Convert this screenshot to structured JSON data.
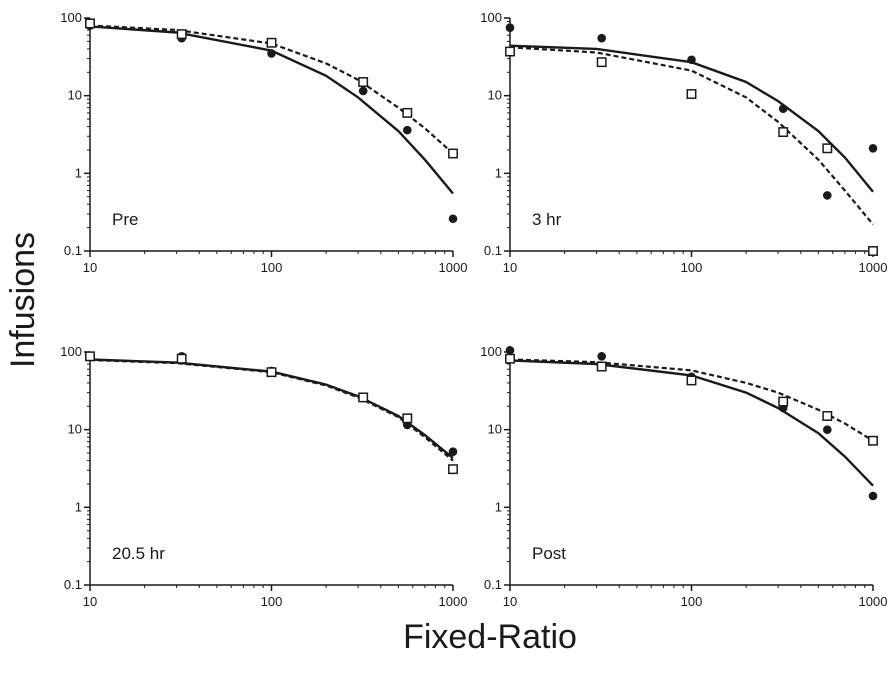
{
  "chart_data": {
    "type": "scatter",
    "xlabel": "Fixed-Ratio",
    "ylabel": "Infusions",
    "xscale": "log",
    "yscale": "log",
    "xlim": [
      10,
      1000
    ],
    "ylim": [
      0.1,
      100
    ],
    "xticks": [
      10,
      100,
      1000
    ],
    "xtick_labels": [
      "10",
      "100",
      "1000"
    ],
    "yticks": [
      0.1,
      1,
      10,
      100
    ],
    "ytick_labels": [
      "0.1",
      "1",
      "10",
      "100"
    ],
    "grid": false,
    "legend": "none",
    "marker_styles": {
      "filled": "filled circle",
      "open": "open square"
    },
    "line_styles": {
      "filled": "solid",
      "open": "dashed"
    },
    "colors": {
      "ink": "#1a1a1a",
      "background": "#ffffff"
    },
    "panels": [
      {
        "label": "Pre",
        "series": [
          {
            "marker": "filled",
            "x": [
              10,
              32,
              100,
              320,
              560,
              1000
            ],
            "y": [
              80,
              55,
              35,
              11.5,
              3.6,
              0.26
            ],
            "fit_x": [
              10,
              30,
              100,
              200,
              300,
              500,
              700,
              1000
            ],
            "fit_y": [
              78,
              65,
              38,
              18,
              9.5,
              3.5,
              1.5,
              0.55
            ]
          },
          {
            "marker": "open",
            "x": [
              10,
              32,
              100,
              320,
              560,
              1000
            ],
            "y": [
              85,
              62,
              48,
              15,
              6,
              1.8
            ],
            "fit_x": [
              10,
              30,
              100,
              200,
              300,
              500,
              700,
              1000
            ],
            "fit_y": [
              80,
              70,
              47,
              26,
              16,
              7,
              3.8,
              1.8
            ]
          }
        ]
      },
      {
        "label": "3 hr",
        "series": [
          {
            "marker": "filled",
            "x": [
              10,
              32,
              100,
              320,
              560,
              1000
            ],
            "y": [
              75,
              55,
              29,
              6.8,
              0.52,
              2.1
            ],
            "fit_x": [
              10,
              30,
              100,
              200,
              300,
              500,
              700,
              1000
            ],
            "fit_y": [
              44,
              40,
              27,
              15,
              8.5,
              3.5,
              1.6,
              0.58
            ]
          },
          {
            "marker": "open",
            "x": [
              10,
              32,
              100,
              320,
              560,
              1000
            ],
            "y": [
              37,
              27,
              10.5,
              3.4,
              2.1,
              0.1
            ],
            "fit_x": [
              10,
              30,
              100,
              200,
              300,
              500,
              700,
              1000
            ],
            "fit_y": [
              42,
              36,
              21,
              9.5,
              4.6,
              1.5,
              0.6,
              0.22
            ]
          }
        ]
      },
      {
        "label": "20.5 hr",
        "series": [
          {
            "marker": "filled",
            "x": [
              10,
              32,
              100,
              320,
              560,
              1000
            ],
            "y": [
              90,
              88,
              57,
              26,
              11.5,
              5.2
            ],
            "fit_x": [
              10,
              30,
              100,
              200,
              300,
              500,
              700,
              1000
            ],
            "fit_y": [
              80,
              73,
              56,
              38,
              27,
              15,
              8.5,
              4.3
            ]
          },
          {
            "marker": "open",
            "x": [
              10,
              32,
              100,
              320,
              560,
              1000
            ],
            "y": [
              88,
              82,
              55,
              26,
              14,
              3.1
            ],
            "fit_x": [
              10,
              30,
              100,
              200,
              300,
              500,
              700,
              1000
            ],
            "fit_y": [
              79,
              72,
              55,
              37,
              26,
              14.5,
              8,
              4
            ]
          }
        ]
      },
      {
        "label": "Post",
        "series": [
          {
            "marker": "filled",
            "x": [
              10,
              32,
              100,
              320,
              560,
              1000
            ],
            "y": [
              105,
              88,
              48,
              19,
              10,
              1.4
            ],
            "fit_x": [
              10,
              30,
              100,
              200,
              300,
              500,
              700,
              1000
            ],
            "fit_y": [
              78,
              70,
              50,
              30,
              19,
              9,
              4.5,
              1.9
            ]
          },
          {
            "marker": "open",
            "x": [
              10,
              32,
              100,
              320,
              560,
              1000
            ],
            "y": [
              82,
              65,
              43,
              23,
              15,
              7.2
            ],
            "fit_x": [
              10,
              30,
              100,
              200,
              300,
              500,
              700,
              1000
            ],
            "fit_y": [
              80,
              74,
              58,
              40,
              30,
              18,
              12,
              7.2
            ]
          }
        ]
      }
    ]
  }
}
